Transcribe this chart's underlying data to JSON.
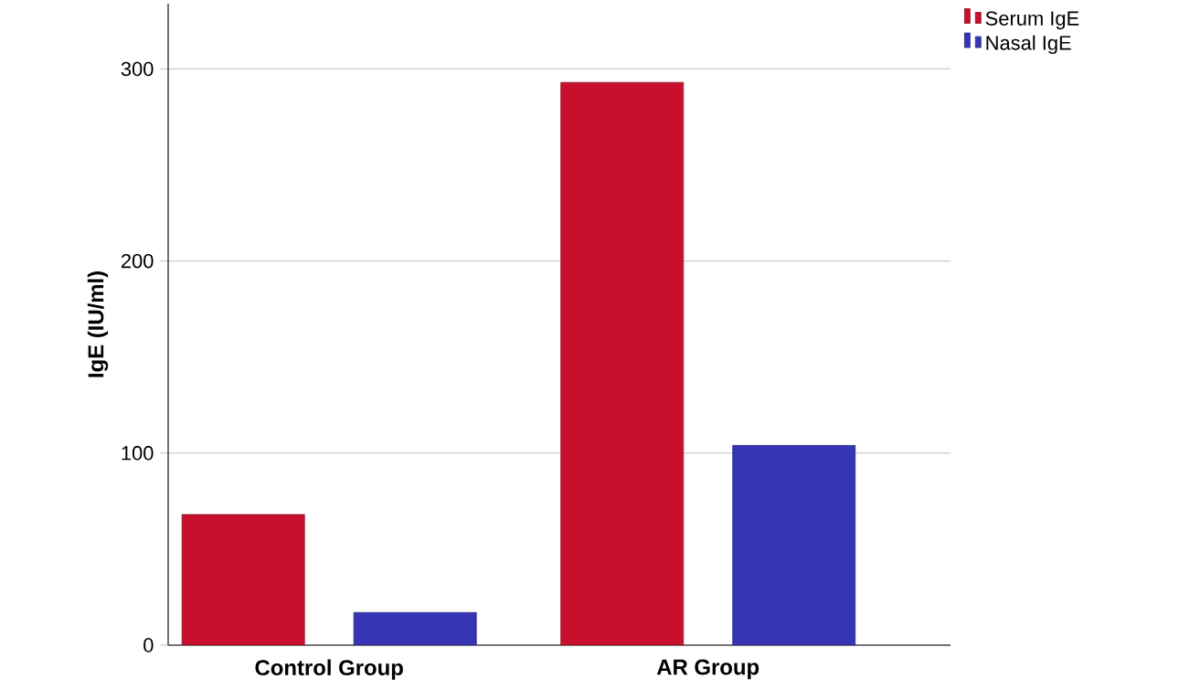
{
  "chart_data": {
    "type": "bar",
    "ylabel": "IgE (IU/ml)",
    "categories": [
      "Control Group",
      "AR Group"
    ],
    "series": [
      {
        "name": "Serum IgE",
        "color": "#c8102e",
        "values": [
          68,
          293
        ]
      },
      {
        "name": "Nasal IgE",
        "color": "#3535b5",
        "values": [
          17,
          104
        ]
      }
    ],
    "ylim": [
      0,
      334
    ],
    "yticks": [
      0,
      100,
      200,
      300
    ],
    "grid": "y",
    "legend": "top right"
  }
}
